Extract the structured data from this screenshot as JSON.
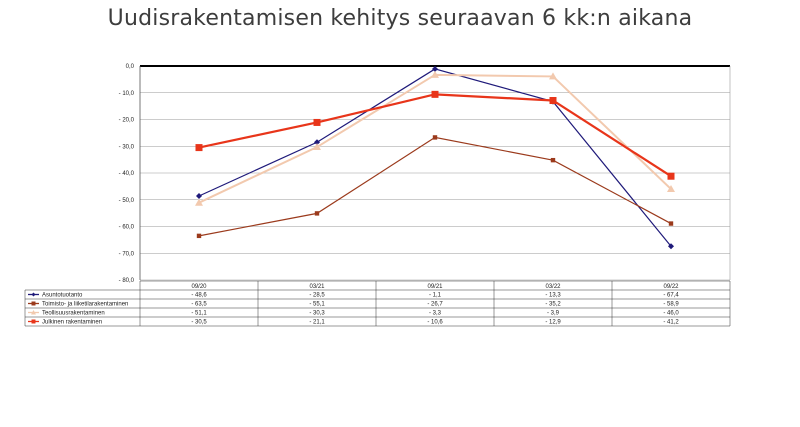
{
  "title": "Uudisrakentamisen kehitys seuraavan 6 kk:n aikana",
  "chart_data": {
    "type": "line",
    "title": "Uudisrakentamisen kehitys seuraavan 6 kk:n aikana",
    "categories": [
      "09/20",
      "03/21",
      "09/21",
      "03/22",
      "09/22"
    ],
    "ylim": [
      -80,
      0
    ],
    "yticks": [
      "0,0",
      "- 10,0",
      "- 20,0",
      "- 30,0",
      "- 40,0",
      "- 50,0",
      "- 60,0",
      "- 70,0",
      "- 80,0"
    ],
    "grid": true,
    "legend": "data table below chart",
    "series": [
      {
        "name": "Asuntotuotanto",
        "color": "#1f1a7a",
        "marker": "diamond",
        "width": 1.2,
        "values": [
          -48.6,
          -28.5,
          -1.1,
          -13.3,
          -67.4
        ],
        "labels": [
          "- 48,6",
          "- 28,5",
          "- 1,1",
          "- 13,3",
          "- 67,4"
        ]
      },
      {
        "name": "Toimisto- ja liiketilarakentaminen",
        "color": "#9b3a1c",
        "marker": "square-small",
        "width": 1.2,
        "values": [
          -63.5,
          -55.1,
          -26.7,
          -35.2,
          -58.9
        ],
        "labels": [
          "- 63,5",
          "- 55,1",
          "- 26,7",
          "- 35,2",
          "- 58,9"
        ]
      },
      {
        "name": "Teollisuusrakentaminen",
        "color": "#f2c9ae",
        "marker": "triangle",
        "width": 2,
        "values": [
          -51.1,
          -30.3,
          -3.3,
          -3.9,
          -46.0
        ],
        "labels": [
          "- 51,1",
          "- 30,3",
          "- 3,3",
          "- 3,9",
          "- 46,0"
        ]
      },
      {
        "name": "Julkinen rakentaminen",
        "color": "#e8351a",
        "marker": "square",
        "width": 2.2,
        "values": [
          -30.5,
          -21.1,
          -10.6,
          -12.9,
          -41.2
        ],
        "labels": [
          "- 30,5",
          "- 21,1",
          "- 10,6",
          "- 12,9",
          "- 41,2"
        ]
      }
    ]
  }
}
